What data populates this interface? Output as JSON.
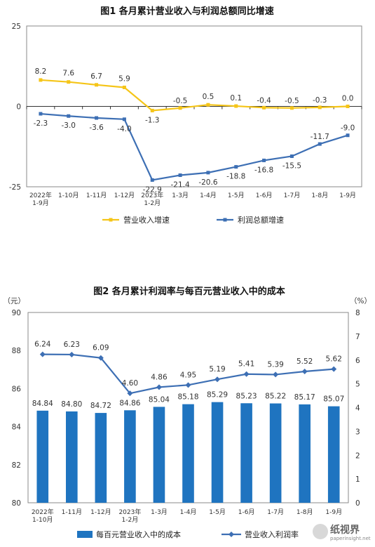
{
  "chart_data": [
    {
      "type": "line",
      "title": "图1  各月累计营业收入与利润总额同比增速",
      "categories": [
        [
          "2022年",
          "1-9月"
        ],
        [
          "1-10月"
        ],
        [
          "1-11月"
        ],
        [
          "1-12月"
        ],
        [
          "2023年",
          "1-2月"
        ],
        [
          "1-3月"
        ],
        [
          "1-4月"
        ],
        [
          "1-5月"
        ],
        [
          "1-6月"
        ],
        [
          "1-7月"
        ],
        [
          "1-8月"
        ],
        [
          "1-9月"
        ]
      ],
      "y_ticks": [
        "25",
        "0",
        "-25"
      ],
      "ylim": [
        -25,
        25
      ],
      "series": [
        {
          "name": "营业收入增速",
          "color": "#F5C518",
          "values": [
            8.2,
            7.6,
            6.7,
            5.9,
            -1.3,
            -0.5,
            0.5,
            0.1,
            -0.4,
            -0.5,
            -0.3,
            0.0
          ],
          "labels": [
            "8.2",
            "7.6",
            "6.7",
            "5.9",
            "-1.3",
            "-0.5",
            "0.5",
            "0.1",
            "-0.4",
            "-0.5",
            "-0.3",
            "0.0"
          ]
        },
        {
          "name": "利润总额增速",
          "color": "#3D6FB4",
          "values": [
            -2.3,
            -3.0,
            -3.6,
            -4.0,
            -22.9,
            -21.4,
            -20.6,
            -18.8,
            -16.8,
            -15.5,
            -11.7,
            -9.0
          ],
          "labels": [
            "-2.3",
            "-3.0",
            "-3.6",
            "-4.0",
            "-22.9",
            "-21.4",
            "-20.6",
            "-18.8",
            "-16.8",
            "-15.5",
            "-11.7",
            "-9.0"
          ]
        }
      ]
    },
    {
      "type": "bar",
      "title": "图2  各月累计利润率与每百元营业收入中的成本",
      "categories": [
        [
          "2022年",
          "1-10月"
        ],
        [
          "1-11月"
        ],
        [
          "1-12月"
        ],
        [
          "2023年",
          "1-2月"
        ],
        [
          "1-3月"
        ],
        [
          "1-4月"
        ],
        [
          "1-5月"
        ],
        [
          "1-6月"
        ],
        [
          "1-7月"
        ],
        [
          "1-8月"
        ],
        [
          "1-9月"
        ]
      ],
      "y_left_unit": "（元）",
      "y_right_unit": "（%）",
      "y_left_ticks": [
        "90",
        "88",
        "86",
        "84",
        "82",
        "80"
      ],
      "y_right_ticks": [
        "8",
        "7",
        "6",
        "5",
        "4",
        "3",
        "2",
        "1",
        "0"
      ],
      "ylim_left": [
        80,
        90
      ],
      "ylim_right": [
        0,
        8
      ],
      "series": [
        {
          "name": "每百元营业收入中的成本",
          "color": "#1F74C0",
          "axis": "left",
          "values": [
            84.84,
            84.8,
            84.72,
            84.86,
            85.04,
            85.18,
            85.29,
            85.23,
            85.22,
            85.17,
            85.07
          ],
          "labels": [
            "84.84",
            "84.80",
            "84.72",
            "84.86",
            "85.04",
            "85.18",
            "85.29",
            "85.23",
            "85.22",
            "85.17",
            "85.07"
          ]
        },
        {
          "name": "营业收入利润率",
          "color": "#3D6FB4",
          "axis": "right",
          "values": [
            6.24,
            6.23,
            6.09,
            4.6,
            4.86,
            4.95,
            5.19,
            5.41,
            5.39,
            5.52,
            5.62
          ],
          "labels": [
            "6.24",
            "6.23",
            "6.09",
            "4.60",
            "4.86",
            "4.95",
            "5.19",
            "5.41",
            "5.39",
            "5.52",
            "5.62"
          ]
        }
      ]
    }
  ],
  "watermark": {
    "brand": "纸视界",
    "url": "paperinsight.net"
  }
}
